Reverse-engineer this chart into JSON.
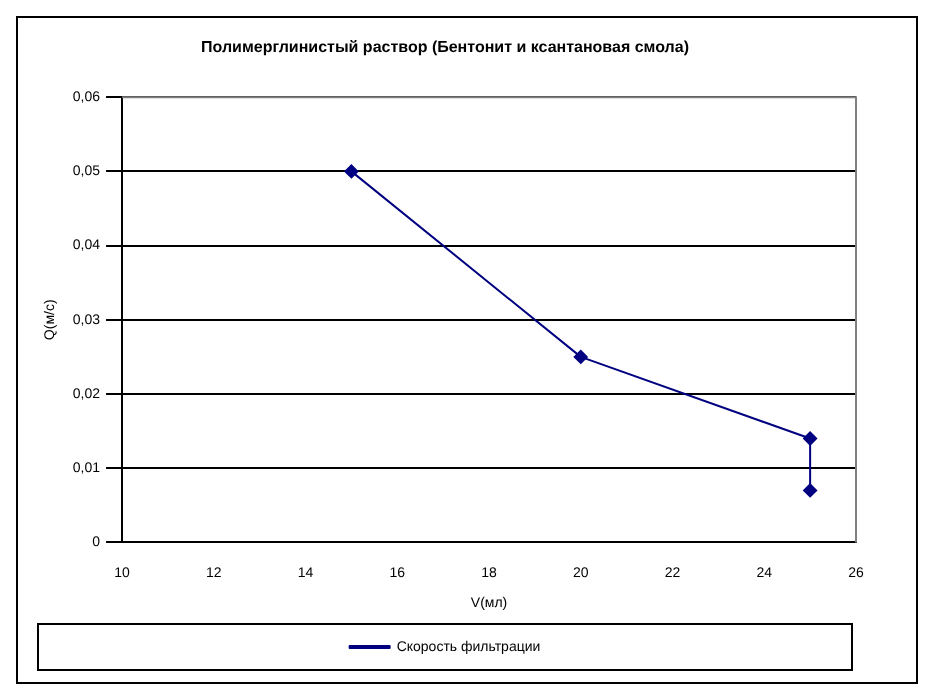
{
  "chart_data": {
    "type": "line",
    "title": "Полимерглинистый раствор (Бентонит и ксантановая смола)",
    "xlabel": "V(мл)",
    "ylabel": "Q(м/с)",
    "x": [
      15,
      20,
      25,
      25
    ],
    "series": [
      {
        "name": "Скорость фильтрации",
        "color": "#000080",
        "values": [
          0.05,
          0.025,
          0.014,
          0.007
        ]
      }
    ],
    "xlim": [
      10,
      26
    ],
    "xticks": [
      10,
      12,
      14,
      16,
      18,
      20,
      22,
      24,
      26
    ],
    "ylim": [
      0,
      0.06
    ],
    "yticks": [
      {
        "value": 0,
        "label": "0"
      },
      {
        "value": 0.01,
        "label": "0,01"
      },
      {
        "value": 0.02,
        "label": "0,02"
      },
      {
        "value": 0.03,
        "label": "0,03"
      },
      {
        "value": 0.04,
        "label": "0,04"
      },
      {
        "value": 0.05,
        "label": "0,05"
      },
      {
        "value": 0.06,
        "label": "0,06"
      }
    ],
    "grid": "y",
    "legend": "bottom",
    "marker": "diamond",
    "line_style": "solid"
  }
}
